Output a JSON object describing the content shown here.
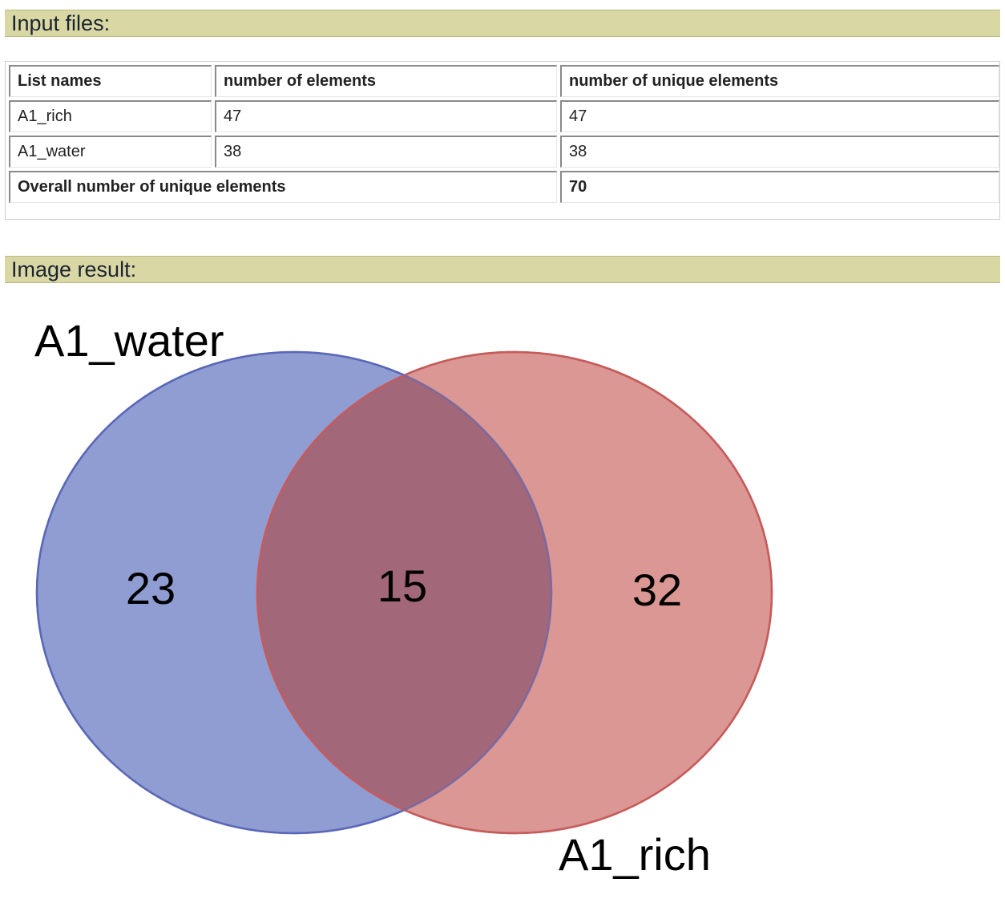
{
  "input_section": {
    "title": "Input files:",
    "table": {
      "headers": [
        "List names",
        "number of elements",
        "number of unique elements"
      ],
      "rows": [
        [
          "A1_rich",
          "47",
          "47"
        ],
        [
          "A1_water",
          "38",
          "38"
        ]
      ],
      "summary_label": "Overall number of unique elements",
      "summary_value": "70"
    }
  },
  "image_section": {
    "title": "Image result:"
  },
  "chart_data": {
    "type": "venn",
    "sets": [
      {
        "name": "A1_water",
        "color": "#7384c8",
        "edge": "#5a68b8",
        "size": 38
      },
      {
        "name": "A1_rich",
        "color": "#d27d79",
        "edge": "#c65b5b",
        "size": 47
      }
    ],
    "regions": {
      "A1_water_only": "23",
      "intersection": "15",
      "A1_rich_only": "32"
    },
    "overlap_color": "#a26779"
  }
}
